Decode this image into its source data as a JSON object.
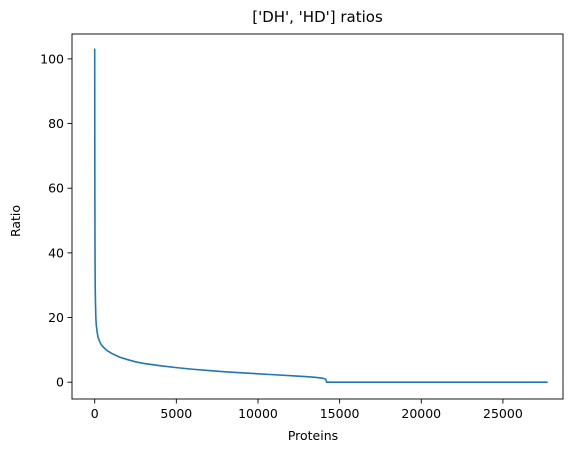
{
  "chart_data": {
    "type": "line",
    "title": "['DH', 'HD'] ratios",
    "xlabel": "Proteins",
    "ylabel": "Ratio",
    "xlim": [
      -1390,
      28680
    ],
    "ylim": [
      -5.2,
      107.7
    ],
    "xticks": [
      0,
      5000,
      10000,
      15000,
      20000,
      25000
    ],
    "yticks": [
      0,
      20,
      40,
      60,
      80,
      100
    ],
    "grid": false,
    "legend": "none",
    "series": [
      {
        "color": "#1f77b4",
        "x": [
          0,
          5,
          10,
          20,
          30,
          50,
          70,
          100,
          150,
          200,
          300,
          400,
          500,
          700,
          1000,
          1500,
          2000,
          2500,
          3000,
          4000,
          5000,
          6000,
          7000,
          8000,
          9000,
          10000,
          11000,
          12000,
          13000,
          13500,
          14000,
          14150,
          14200,
          16000,
          18000,
          20000,
          22000,
          24000,
          26000,
          27700
        ],
        "y": [
          103,
          80,
          60,
          40,
          30,
          24,
          20,
          17.5,
          15.5,
          14,
          12.6,
          11.6,
          11,
          10,
          9,
          7.8,
          7,
          6.3,
          5.8,
          5.1,
          4.5,
          4.0,
          3.6,
          3.2,
          2.9,
          2.6,
          2.3,
          2.0,
          1.7,
          1.5,
          1.2,
          0.9,
          0,
          0,
          0,
          0,
          0,
          0,
          0,
          0
        ]
      }
    ]
  }
}
